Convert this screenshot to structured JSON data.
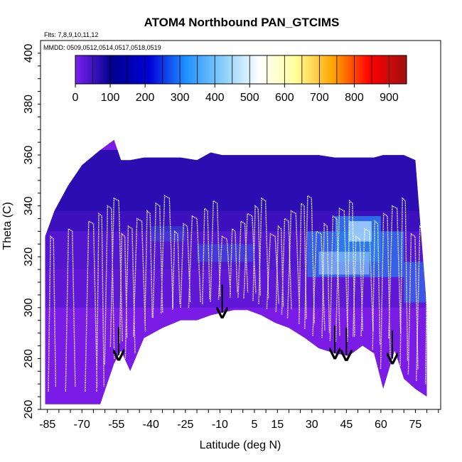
{
  "chart_data": {
    "type": "heatmap",
    "title": "ATOM4 Northbound PAN_GTCIMS",
    "annotations": [
      "Flts: 7,8,9,10,11,12",
      "MMDD: 0509,0512,0514,0517,0518,0519"
    ],
    "xlabel": "Latitude (deg N)",
    "ylabel": "Theta (C)",
    "xlim": [
      -88,
      86
    ],
    "ylim": [
      260,
      405
    ],
    "xticks": [
      -85,
      -70,
      -55,
      -40,
      -25,
      -10,
      5,
      15,
      30,
      45,
      60,
      75
    ],
    "yticks": [
      260,
      280,
      300,
      320,
      340,
      360,
      380,
      400
    ],
    "colorbar": {
      "range": [
        0,
        950
      ],
      "ticks": [
        0,
        100,
        200,
        300,
        400,
        500,
        600,
        700,
        800,
        900
      ],
      "colors": [
        "#7a22f0",
        "#00008c",
        "#0000d8",
        "#1e90ff",
        "#87cefa",
        "#ffffff",
        "#ffff99",
        "#ffa500",
        "#ff0000",
        "#a01010"
      ]
    },
    "field_colors": {
      "low": "#7a1ce6",
      "mid": "#4a14c8",
      "high": "#0a0a9a",
      "enhanced": "#2a7ff0",
      "peak": "#bfe8ff",
      "flight_track": "#ffffff",
      "marker": "#000000"
    },
    "series": [
      {
        "x": [
          -86,
          -82,
          -76,
          -70,
          -62,
          -56,
          -53,
          -49,
          -43,
          -35,
          -27,
          -20,
          -14,
          -9,
          -4,
          2,
          8,
          14,
          20,
          27,
          33,
          40,
          46,
          52,
          57,
          61,
          66,
          70,
          75,
          80
        ],
        "y_bottom": [
          262,
          262,
          262,
          262,
          262,
          278,
          283,
          275,
          288,
          292,
          295,
          295,
          297,
          298,
          299,
          299,
          297,
          294,
          292,
          288,
          284,
          282,
          281,
          285,
          282,
          268,
          283,
          272,
          268,
          265
        ],
        "y_top": [
          328,
          338,
          348,
          356,
          362,
          366,
          358,
          358,
          359,
          359,
          359,
          358,
          361,
          360,
          360,
          360,
          360,
          360,
          360,
          360,
          360,
          359,
          359,
          359,
          359,
          360,
          360,
          360,
          358,
          300
        ]
      }
    ],
    "flight_profiles_x": [
      -83,
      -75,
      -66,
      -62,
      -58,
      -55,
      -52,
      -49,
      -45,
      -41,
      -37,
      -33,
      -29,
      -25,
      -21,
      -16,
      -12,
      -8,
      -4,
      0,
      3,
      6,
      9,
      13,
      16,
      19,
      22,
      26,
      29,
      33,
      36,
      40,
      43,
      47,
      50,
      54,
      58,
      62,
      66,
      70,
      74,
      78,
      81
    ],
    "arrows_x": [
      -54,
      -9,
      40,
      45,
      65
    ]
  }
}
